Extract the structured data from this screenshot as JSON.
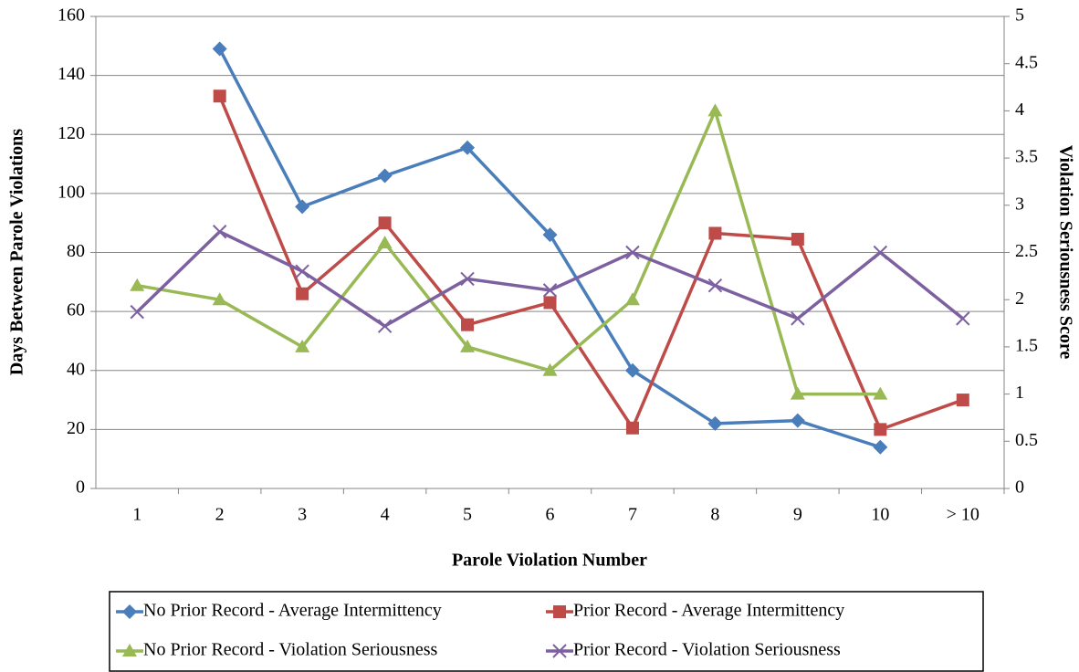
{
  "chart_data": {
    "type": "line",
    "x_label": "Parole Violation Number",
    "y_label": "Days Between Parole Violations",
    "y2_label": "Violation Seriousness Score",
    "categories": [
      "1",
      "2",
      "3",
      "4",
      "5",
      "6",
      "7",
      "8",
      "9",
      "10",
      "> 10"
    ],
    "ylim": [
      0,
      160
    ],
    "yticks": [
      0,
      20,
      40,
      60,
      80,
      100,
      120,
      140,
      160
    ],
    "y2lim": [
      0,
      5
    ],
    "y2ticks": [
      0,
      0.5,
      1,
      1.5,
      2,
      2.5,
      3,
      3.5,
      4,
      4.5,
      5
    ],
    "grid": true,
    "legend": "bottom",
    "series": [
      {
        "name": "No Prior Record - Average Intermittency",
        "color": "#4a7ebb",
        "marker": "diamond",
        "values": [
          null,
          149,
          95.5,
          106,
          115.5,
          86,
          40,
          22,
          23,
          14,
          null
        ]
      },
      {
        "name": "Prior Record - Average Intermittency",
        "color": "#be4b48",
        "marker": "square",
        "values": [
          null,
          133,
          66,
          90,
          55.5,
          63,
          20.5,
          86.5,
          84.5,
          20,
          30
        ]
      },
      {
        "name": "No Prior Record - Violation Seriousness",
        "color": "#98b954",
        "marker": "triangle",
        "axis": "y2",
        "values": [
          2.15,
          2,
          1.5,
          2.6,
          1.5,
          1.25,
          2,
          4,
          1,
          1,
          null
        ]
      },
      {
        "name": "Prior Record - Violation Seriousness",
        "color": "#7d60a0",
        "marker": "x",
        "axis": "y2",
        "values": [
          1.87,
          2.72,
          2.3,
          1.72,
          2.22,
          2.1,
          2.5,
          2.15,
          1.8,
          2.5,
          1.8
        ]
      }
    ]
  }
}
